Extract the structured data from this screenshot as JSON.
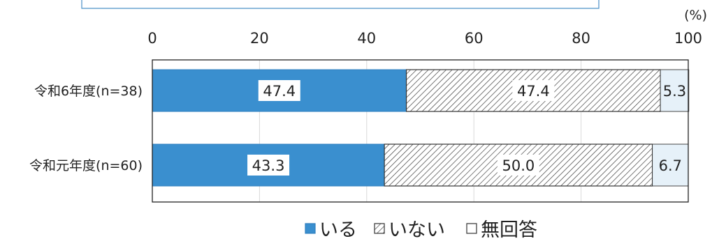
{
  "chart_data": {
    "type": "bar",
    "orientation": "horizontal",
    "stacked": true,
    "unit": "(%)",
    "xlim": [
      0,
      100
    ],
    "xticks": [
      0,
      20,
      40,
      60,
      80,
      100
    ],
    "categories": [
      "令和6年度(n=38)",
      "令和元年度(n=60)"
    ],
    "series": [
      {
        "name": "いる",
        "values": [
          47.4,
          43.3
        ],
        "labels": [
          "47.4",
          "43.3"
        ],
        "color": "#3a8fcf",
        "pattern": "solid"
      },
      {
        "name": "いない",
        "values": [
          47.4,
          50.0
        ],
        "labels": [
          "47.4",
          "50.0"
        ],
        "color": "#ffffff",
        "pattern": "hatch"
      },
      {
        "name": "無回答",
        "values": [
          5.3,
          6.7
        ],
        "labels": [
          "5.3",
          "6.7"
        ],
        "color": "#e6f1f9",
        "pattern": "solid"
      }
    ],
    "gridlines": true,
    "legend_position": "bottom"
  }
}
